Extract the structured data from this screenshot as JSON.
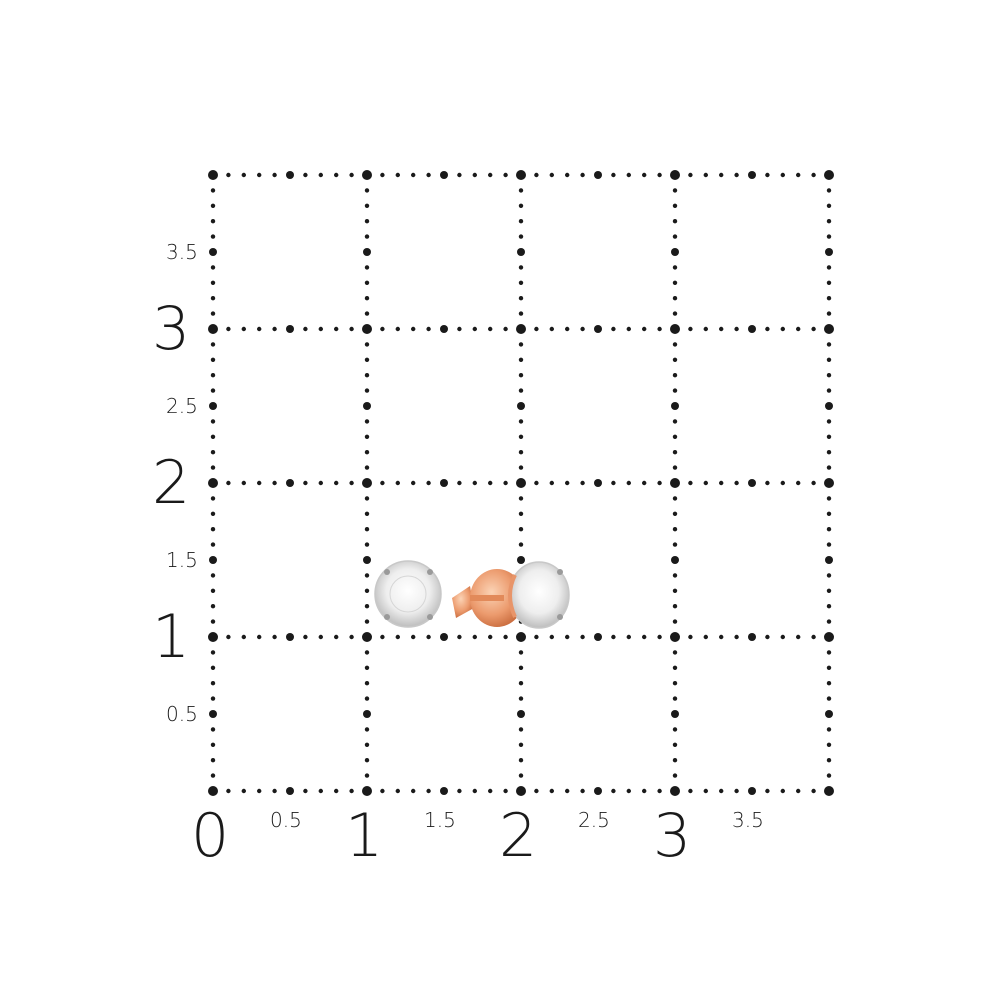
{
  "grid": {
    "x_range": [
      0,
      4
    ],
    "y_range": [
      0,
      4
    ],
    "dot_color": "#1a1a1a",
    "x_labels": [
      "0",
      "0.5",
      "1",
      "1.5",
      "2",
      "2.5",
      "3",
      "3.5"
    ],
    "y_labels": [
      "0.5",
      "1",
      "1.5",
      "2",
      "2.5",
      "3",
      "3.5"
    ]
  },
  "product": {
    "type": "stud earrings",
    "metal_color": "#e8956a",
    "stone_color": "#f2f2f2"
  }
}
